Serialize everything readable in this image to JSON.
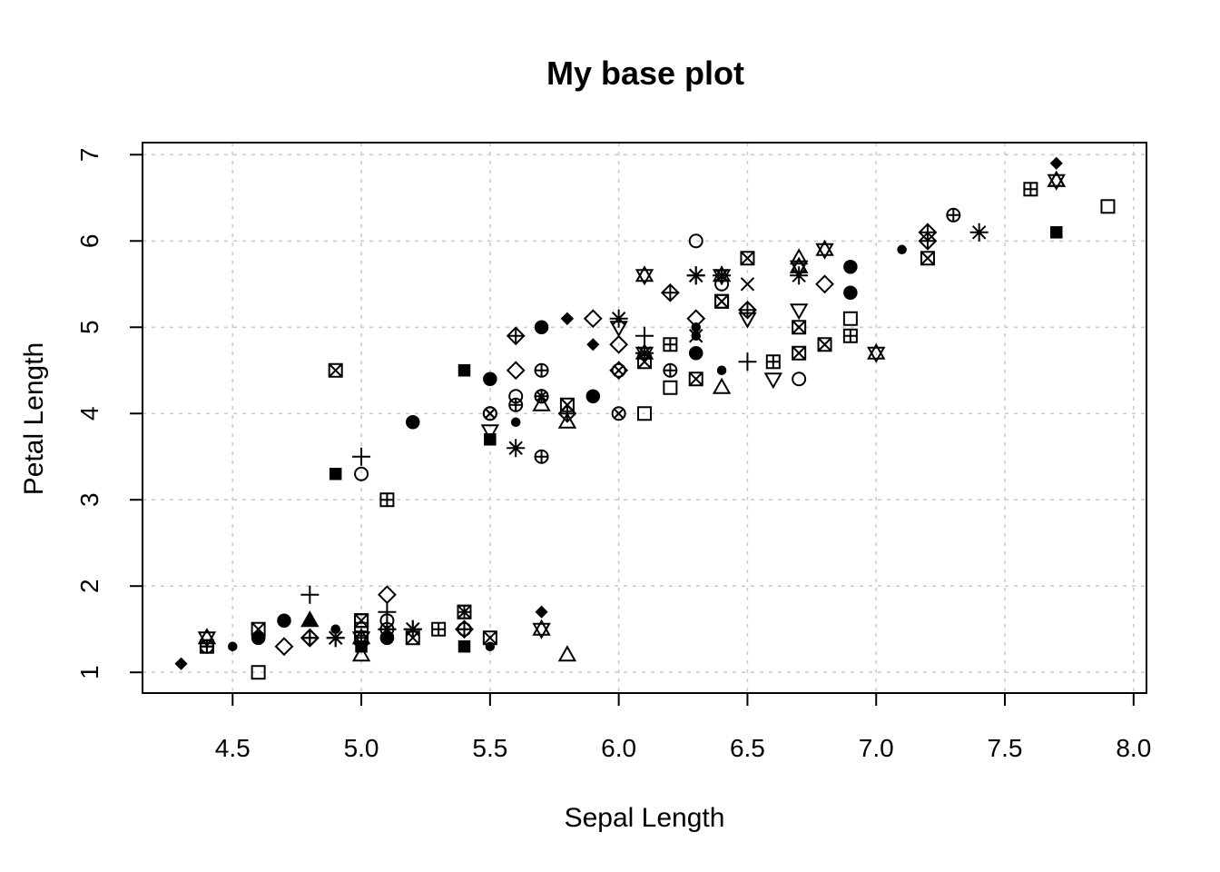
{
  "chart_data": {
    "type": "scatter",
    "title": "My base plot",
    "xlabel": "Sepal Length",
    "ylabel": "Petal Length",
    "xlim": [
      4.15,
      8.05
    ],
    "ylim": [
      0.76,
      7.14
    ],
    "x_ticks": [
      4.5,
      5.0,
      5.5,
      6.0,
      6.5,
      7.0,
      7.5,
      8.0
    ],
    "x_tick_labels": [
      "4.5",
      "5.0",
      "5.5",
      "6.0",
      "6.5",
      "7.0",
      "7.5",
      "8.0"
    ],
    "y_ticks": [
      1,
      2,
      3,
      4,
      5,
      6,
      7
    ],
    "y_tick_labels": [
      "1",
      "2",
      "3",
      "4",
      "5",
      "6",
      "7"
    ],
    "grid": true,
    "marker_color": "#000000",
    "grid_color": "#cccccc",
    "points": [
      {
        "x": 5.1,
        "y": 1.4,
        "m": "circle-filled"
      },
      {
        "x": 4.9,
        "y": 1.4,
        "m": "asterisk"
      },
      {
        "x": 4.7,
        "y": 1.3,
        "m": "diamond"
      },
      {
        "x": 4.6,
        "y": 1.5,
        "m": "square-x"
      },
      {
        "x": 5.0,
        "y": 1.4,
        "m": "square-plus"
      },
      {
        "x": 5.4,
        "y": 1.7,
        "m": "square-x"
      },
      {
        "x": 4.6,
        "y": 1.4,
        "m": "circle-filled"
      },
      {
        "x": 5.0,
        "y": 1.5,
        "m": "square"
      },
      {
        "x": 4.4,
        "y": 1.4,
        "m": "star-david"
      },
      {
        "x": 4.9,
        "y": 1.5,
        "m": "dot"
      },
      {
        "x": 5.4,
        "y": 1.5,
        "m": "diamond-plus"
      },
      {
        "x": 4.8,
        "y": 1.6,
        "m": "triangle-filled"
      },
      {
        "x": 4.8,
        "y": 1.4,
        "m": "diamond-plus"
      },
      {
        "x": 4.3,
        "y": 1.1,
        "m": "diamond-filled"
      },
      {
        "x": 5.8,
        "y": 1.2,
        "m": "triangle"
      },
      {
        "x": 5.7,
        "y": 1.5,
        "m": "star-david"
      },
      {
        "x": 5.4,
        "y": 1.3,
        "m": "square-filled"
      },
      {
        "x": 5.1,
        "y": 1.4,
        "m": "circle-filled"
      },
      {
        "x": 5.7,
        "y": 1.7,
        "m": "diamond-filled"
      },
      {
        "x": 5.1,
        "y": 1.5,
        "m": "plus"
      },
      {
        "x": 5.4,
        "y": 1.7,
        "m": "square-plus"
      },
      {
        "x": 5.1,
        "y": 1.5,
        "m": "asterisk"
      },
      {
        "x": 4.6,
        "y": 1.0,
        "m": "square"
      },
      {
        "x": 5.1,
        "y": 1.7,
        "m": "plus"
      },
      {
        "x": 4.8,
        "y": 1.9,
        "m": "plus"
      },
      {
        "x": 5.0,
        "y": 1.6,
        "m": "square"
      },
      {
        "x": 5.0,
        "y": 1.6,
        "m": "square-x"
      },
      {
        "x": 5.2,
        "y": 1.5,
        "m": "asterisk"
      },
      {
        "x": 5.2,
        "y": 1.4,
        "m": "square-x"
      },
      {
        "x": 4.7,
        "y": 1.6,
        "m": "circle-filled"
      },
      {
        "x": 4.8,
        "y": 1.6,
        "m": "triangle"
      },
      {
        "x": 5.4,
        "y": 1.5,
        "m": "circle-plus"
      },
      {
        "x": 5.2,
        "y": 1.5,
        "m": "asterisk"
      },
      {
        "x": 5.5,
        "y": 1.4,
        "m": "square-x"
      },
      {
        "x": 4.9,
        "y": 1.5,
        "m": "dot"
      },
      {
        "x": 5.0,
        "y": 1.2,
        "m": "triangle"
      },
      {
        "x": 5.5,
        "y": 1.3,
        "m": "dot"
      },
      {
        "x": 4.9,
        "y": 1.4,
        "m": "asterisk"
      },
      {
        "x": 4.4,
        "y": 1.3,
        "m": "circle-plus"
      },
      {
        "x": 5.1,
        "y": 1.5,
        "m": "circle"
      },
      {
        "x": 5.0,
        "y": 1.3,
        "m": "square-filled"
      },
      {
        "x": 4.5,
        "y": 1.3,
        "m": "dot"
      },
      {
        "x": 4.4,
        "y": 1.3,
        "m": "square-plus"
      },
      {
        "x": 5.0,
        "y": 1.6,
        "m": "square"
      },
      {
        "x": 5.1,
        "y": 1.9,
        "m": "diamond"
      },
      {
        "x": 4.8,
        "y": 1.4,
        "m": "diamond-plus"
      },
      {
        "x": 5.1,
        "y": 1.6,
        "m": "circle"
      },
      {
        "x": 4.6,
        "y": 1.4,
        "m": "circle-filled"
      },
      {
        "x": 5.3,
        "y": 1.5,
        "m": "square-plus"
      },
      {
        "x": 5.0,
        "y": 1.4,
        "m": "star-david"
      },
      {
        "x": 7.0,
        "y": 4.7,
        "m": "star-david"
      },
      {
        "x": 6.4,
        "y": 4.5,
        "m": "dot"
      },
      {
        "x": 6.9,
        "y": 4.9,
        "m": "square-plus"
      },
      {
        "x": 5.5,
        "y": 4.0,
        "m": "circle-x"
      },
      {
        "x": 6.5,
        "y": 4.6,
        "m": "plus"
      },
      {
        "x": 5.7,
        "y": 4.5,
        "m": "circle-plus"
      },
      {
        "x": 6.3,
        "y": 4.7,
        "m": "circle-filled"
      },
      {
        "x": 4.9,
        "y": 3.3,
        "m": "square-filled"
      },
      {
        "x": 6.6,
        "y": 4.6,
        "m": "square-plus"
      },
      {
        "x": 5.2,
        "y": 3.9,
        "m": "circle-filled"
      },
      {
        "x": 5.0,
        "y": 3.5,
        "m": "plus"
      },
      {
        "x": 5.9,
        "y": 4.2,
        "m": "circle-filled"
      },
      {
        "x": 6.0,
        "y": 4.0,
        "m": "circle-x"
      },
      {
        "x": 6.1,
        "y": 4.7,
        "m": "star-david"
      },
      {
        "x": 5.6,
        "y": 3.6,
        "m": "asterisk"
      },
      {
        "x": 6.7,
        "y": 4.4,
        "m": "circle"
      },
      {
        "x": 5.6,
        "y": 4.5,
        "m": "diamond"
      },
      {
        "x": 5.8,
        "y": 4.1,
        "m": "square-x"
      },
      {
        "x": 6.2,
        "y": 4.5,
        "m": "circle-plus"
      },
      {
        "x": 5.6,
        "y": 3.9,
        "m": "dot"
      },
      {
        "x": 5.9,
        "y": 4.8,
        "m": "diamond-filled"
      },
      {
        "x": 6.1,
        "y": 4.0,
        "m": "square"
      },
      {
        "x": 6.3,
        "y": 4.9,
        "m": "dot"
      },
      {
        "x": 6.1,
        "y": 4.7,
        "m": "asterisk"
      },
      {
        "x": 6.4,
        "y": 4.3,
        "m": "triangle"
      },
      {
        "x": 6.6,
        "y": 4.4,
        "m": "triangle-down"
      },
      {
        "x": 6.8,
        "y": 4.8,
        "m": "square-x"
      },
      {
        "x": 6.7,
        "y": 5.0,
        "m": "square-x"
      },
      {
        "x": 6.0,
        "y": 4.5,
        "m": "circle-x"
      },
      {
        "x": 5.7,
        "y": 3.5,
        "m": "circle-plus"
      },
      {
        "x": 5.5,
        "y": 3.8,
        "m": "triangle-down"
      },
      {
        "x": 5.5,
        "y": 3.7,
        "m": "square-filled"
      },
      {
        "x": 5.8,
        "y": 3.9,
        "m": "triangle"
      },
      {
        "x": 6.0,
        "y": 5.1,
        "m": "asterisk"
      },
      {
        "x": 5.4,
        "y": 4.5,
        "m": "square-filled"
      },
      {
        "x": 6.0,
        "y": 4.5,
        "m": "diamond"
      },
      {
        "x": 6.7,
        "y": 4.7,
        "m": "square-x"
      },
      {
        "x": 6.3,
        "y": 4.4,
        "m": "square-x"
      },
      {
        "x": 5.6,
        "y": 4.1,
        "m": "circle-plus"
      },
      {
        "x": 5.5,
        "y": 4.0,
        "m": "circle-x"
      },
      {
        "x": 5.5,
        "y": 4.4,
        "m": "circle-filled"
      },
      {
        "x": 6.1,
        "y": 4.6,
        "m": "square-x"
      },
      {
        "x": 5.8,
        "y": 4.0,
        "m": "diamond-plus"
      },
      {
        "x": 5.0,
        "y": 3.3,
        "m": "circle"
      },
      {
        "x": 5.6,
        "y": 4.2,
        "m": "circle"
      },
      {
        "x": 5.7,
        "y": 4.2,
        "m": "circle-plus"
      },
      {
        "x": 5.7,
        "y": 4.2,
        "m": "circle-x"
      },
      {
        "x": 6.2,
        "y": 4.3,
        "m": "square"
      },
      {
        "x": 5.1,
        "y": 3.0,
        "m": "square-plus"
      },
      {
        "x": 5.7,
        "y": 4.1,
        "m": "triangle"
      },
      {
        "x": 6.3,
        "y": 6.0,
        "m": "circle"
      },
      {
        "x": 5.8,
        "y": 5.1,
        "m": "diamond-filled"
      },
      {
        "x": 7.1,
        "y": 5.9,
        "m": "dot"
      },
      {
        "x": 6.3,
        "y": 5.6,
        "m": "asterisk"
      },
      {
        "x": 6.5,
        "y": 5.8,
        "m": "square-x"
      },
      {
        "x": 7.6,
        "y": 6.6,
        "m": "square-plus"
      },
      {
        "x": 4.9,
        "y": 4.5,
        "m": "square-x"
      },
      {
        "x": 7.3,
        "y": 6.3,
        "m": "circle-plus"
      },
      {
        "x": 6.7,
        "y": 5.8,
        "m": "triangle"
      },
      {
        "x": 7.2,
        "y": 6.1,
        "m": "diamond-plus"
      },
      {
        "x": 6.5,
        "y": 5.1,
        "m": "triangle-down"
      },
      {
        "x": 6.4,
        "y": 5.3,
        "m": "square-x"
      },
      {
        "x": 6.8,
        "y": 5.5,
        "m": "diamond"
      },
      {
        "x": 5.7,
        "y": 5.0,
        "m": "circle-filled"
      },
      {
        "x": 5.8,
        "y": 5.1,
        "m": "diamond-filled"
      },
      {
        "x": 6.4,
        "y": 5.3,
        "m": "square-x"
      },
      {
        "x": 6.5,
        "y": 5.5,
        "m": "cross"
      },
      {
        "x": 7.7,
        "y": 6.7,
        "m": "star-david"
      },
      {
        "x": 7.7,
        "y": 6.9,
        "m": "diamond-filled"
      },
      {
        "x": 6.0,
        "y": 5.0,
        "m": "triangle-down"
      },
      {
        "x": 6.9,
        "y": 5.7,
        "m": "circle-filled"
      },
      {
        "x": 5.6,
        "y": 4.9,
        "m": "diamond-plus"
      },
      {
        "x": 7.7,
        "y": 6.7,
        "m": "triangle"
      },
      {
        "x": 6.3,
        "y": 4.9,
        "m": "cross"
      },
      {
        "x": 6.7,
        "y": 5.7,
        "m": "star-david"
      },
      {
        "x": 7.2,
        "y": 6.0,
        "m": "diamond-plus"
      },
      {
        "x": 6.2,
        "y": 4.8,
        "m": "square-plus"
      },
      {
        "x": 6.1,
        "y": 4.9,
        "m": "plus"
      },
      {
        "x": 6.4,
        "y": 5.6,
        "m": "star-david"
      },
      {
        "x": 7.2,
        "y": 5.8,
        "m": "square-x"
      },
      {
        "x": 7.4,
        "y": 6.1,
        "m": "asterisk"
      },
      {
        "x": 7.9,
        "y": 6.4,
        "m": "square"
      },
      {
        "x": 6.4,
        "y": 5.6,
        "m": "asterisk"
      },
      {
        "x": 6.3,
        "y": 5.1,
        "m": "diamond"
      },
      {
        "x": 6.1,
        "y": 5.6,
        "m": "star-david"
      },
      {
        "x": 7.7,
        "y": 6.1,
        "m": "square-filled"
      },
      {
        "x": 6.3,
        "y": 5.6,
        "m": "asterisk"
      },
      {
        "x": 6.4,
        "y": 5.5,
        "m": "circle"
      },
      {
        "x": 6.0,
        "y": 4.8,
        "m": "diamond"
      },
      {
        "x": 6.9,
        "y": 5.4,
        "m": "circle-filled"
      },
      {
        "x": 6.7,
        "y": 5.6,
        "m": "asterisk"
      },
      {
        "x": 6.9,
        "y": 5.1,
        "m": "square"
      },
      {
        "x": 5.8,
        "y": 5.1,
        "m": "diamond-filled"
      },
      {
        "x": 6.8,
        "y": 5.9,
        "m": "star-david"
      },
      {
        "x": 6.7,
        "y": 5.7,
        "m": "star-david"
      },
      {
        "x": 6.7,
        "y": 5.2,
        "m": "triangle-down"
      },
      {
        "x": 6.3,
        "y": 5.0,
        "m": "dot"
      },
      {
        "x": 6.5,
        "y": 5.2,
        "m": "diamond-plus"
      },
      {
        "x": 6.2,
        "y": 5.4,
        "m": "diamond-plus"
      },
      {
        "x": 5.9,
        "y": 5.1,
        "m": "diamond"
      }
    ]
  }
}
